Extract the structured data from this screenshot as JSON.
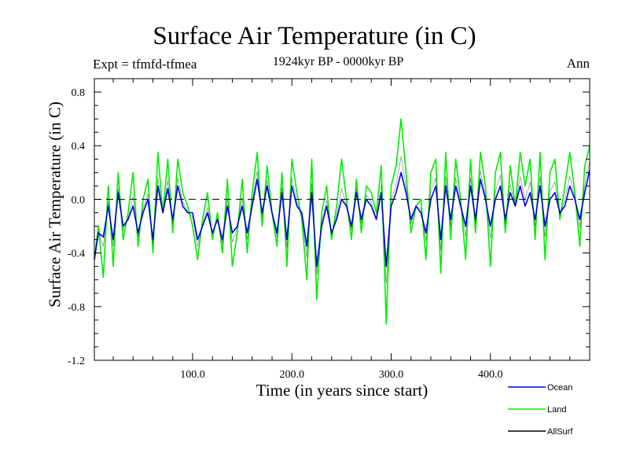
{
  "chart_data": {
    "type": "line",
    "title": "Surface Air Temperature (in C)",
    "subtitle_left": "Expt = tfmfd-tfmea",
    "subtitle_center": "1924kyr BP - 0000kyr BP",
    "subtitle_right": "Ann",
    "xlabel": "Time (in years since start)",
    "ylabel": "Surface Air Temperature (in C)",
    "xlim": [
      1,
      500
    ],
    "ylim": [
      -1.2,
      0.9
    ],
    "xticks": [
      100,
      200,
      300,
      400
    ],
    "xtick_labels": [
      "100.0",
      "200.0",
      "300.0",
      "400.0"
    ],
    "yticks": [
      0.8,
      0.4,
      0.0,
      -0.4,
      -0.8,
      -1.2
    ],
    "ytick_labels": [
      "0.8",
      "0.4",
      "0.0",
      "-0.4",
      "-0.8",
      "-1.2"
    ],
    "zero_line": 0.0,
    "series": [
      {
        "name": "Land",
        "color": "#00ee00",
        "x": [
          1,
          5,
          10,
          15,
          20,
          25,
          30,
          35,
          40,
          45,
          50,
          55,
          60,
          65,
          70,
          75,
          80,
          85,
          90,
          95,
          100,
          105,
          110,
          115,
          120,
          125,
          130,
          135,
          140,
          145,
          150,
          155,
          160,
          165,
          170,
          175,
          180,
          185,
          190,
          195,
          200,
          205,
          210,
          215,
          220,
          225,
          230,
          235,
          240,
          245,
          250,
          255,
          260,
          265,
          270,
          275,
          280,
          285,
          290,
          295,
          300,
          305,
          310,
          315,
          320,
          325,
          330,
          335,
          340,
          345,
          350,
          355,
          360,
          365,
          370,
          375,
          380,
          385,
          390,
          395,
          400,
          405,
          410,
          415,
          420,
          425,
          430,
          435,
          440,
          445,
          450,
          455,
          460,
          465,
          470,
          475,
          480,
          485,
          490,
          495,
          500
        ],
        "values": [
          -0.45,
          -0.2,
          -0.58,
          0.1,
          -0.5,
          0.2,
          -0.3,
          -0.1,
          0.2,
          -0.35,
          0.0,
          0.15,
          -0.4,
          0.35,
          -0.1,
          0.3,
          -0.25,
          0.3,
          0.05,
          -0.05,
          -0.2,
          -0.45,
          -0.15,
          0.05,
          -0.3,
          -0.1,
          -0.4,
          0.15,
          -0.5,
          -0.25,
          0.15,
          -0.4,
          0.05,
          0.35,
          -0.2,
          0.25,
          -0.1,
          -0.35,
          0.2,
          -0.5,
          0.3,
          0.05,
          -0.15,
          -0.6,
          0.3,
          -0.75,
          -0.1,
          0.1,
          -0.3,
          -0.05,
          0.3,
          0.0,
          -0.3,
          0.15,
          -0.25,
          0.1,
          0.05,
          -0.1,
          0.25,
          -0.93,
          0.1,
          0.25,
          0.6,
          0.2,
          -0.25,
          -0.05,
          0.0,
          -0.45,
          0.2,
          0.3,
          -0.55,
          0.35,
          -0.3,
          0.3,
          0.0,
          -0.45,
          0.3,
          -0.25,
          0.35,
          0.1,
          -0.5,
          0.2,
          0.35,
          -0.25,
          0.25,
          -0.05,
          0.35,
          0.1,
          0.3,
          -0.3,
          0.35,
          -0.45,
          0.2,
          0.3,
          -0.15,
          0.1,
          0.35,
          0.05,
          -0.35,
          0.25,
          0.4
        ]
      },
      {
        "name": "Ocean",
        "color": "#0000ff",
        "x": [
          1,
          5,
          10,
          15,
          20,
          25,
          30,
          35,
          40,
          45,
          50,
          55,
          60,
          65,
          70,
          75,
          80,
          85,
          90,
          95,
          100,
          105,
          110,
          115,
          120,
          125,
          130,
          135,
          140,
          145,
          150,
          155,
          160,
          165,
          170,
          175,
          180,
          185,
          190,
          195,
          200,
          205,
          210,
          215,
          220,
          225,
          230,
          235,
          240,
          245,
          250,
          255,
          260,
          265,
          270,
          275,
          280,
          285,
          290,
          295,
          300,
          305,
          310,
          315,
          320,
          325,
          330,
          335,
          340,
          345,
          350,
          355,
          360,
          365,
          370,
          375,
          380,
          385,
          390,
          395,
          400,
          405,
          410,
          415,
          420,
          425,
          430,
          435,
          440,
          445,
          450,
          455,
          460,
          465,
          470,
          475,
          480,
          485,
          490,
          495,
          500
        ],
        "values": [
          -0.45,
          -0.25,
          -0.28,
          -0.05,
          -0.3,
          0.05,
          -0.2,
          -0.15,
          -0.05,
          -0.25,
          -0.1,
          0.0,
          -0.3,
          0.1,
          -0.1,
          0.08,
          -0.15,
          0.1,
          -0.05,
          -0.1,
          -0.1,
          -0.3,
          -0.2,
          -0.1,
          -0.25,
          -0.15,
          -0.3,
          -0.05,
          -0.25,
          -0.2,
          -0.05,
          -0.25,
          -0.05,
          0.15,
          -0.1,
          0.1,
          -0.1,
          -0.25,
          0.05,
          -0.3,
          0.1,
          -0.05,
          -0.1,
          -0.35,
          0.05,
          -0.5,
          -0.2,
          -0.05,
          -0.25,
          -0.15,
          0.0,
          -0.05,
          -0.2,
          0.05,
          -0.15,
          0.0,
          -0.05,
          -0.15,
          0.05,
          -0.5,
          -0.05,
          0.05,
          0.2,
          0.05,
          -0.15,
          -0.05,
          -0.1,
          -0.25,
          0.0,
          0.1,
          -0.3,
          0.1,
          -0.15,
          0.1,
          -0.05,
          -0.2,
          0.1,
          -0.15,
          0.15,
          0.0,
          -0.2,
          0.0,
          0.1,
          -0.15,
          0.05,
          -0.05,
          0.1,
          -0.05,
          0.05,
          -0.15,
          0.1,
          -0.2,
          0.0,
          0.05,
          -0.1,
          -0.05,
          0.1,
          0.0,
          -0.15,
          0.05,
          0.22
        ]
      },
      {
        "name": "AllSurf",
        "color": "#000000",
        "x": [
          1,
          5,
          10,
          15,
          20,
          25,
          30,
          35,
          40,
          45,
          50,
          55,
          60,
          65,
          70,
          75,
          80,
          85,
          90,
          95,
          100,
          105,
          110,
          115,
          120,
          125,
          130,
          135,
          140,
          145,
          150,
          155,
          160,
          165,
          170,
          175,
          180,
          185,
          190,
          195,
          200,
          205,
          210,
          215,
          220,
          225,
          230,
          235,
          240,
          245,
          250,
          255,
          260,
          265,
          270,
          275,
          280,
          285,
          290,
          295,
          300,
          305,
          310,
          315,
          320,
          325,
          330,
          335,
          340,
          345,
          350,
          355,
          360,
          365,
          370,
          375,
          380,
          385,
          390,
          395,
          400,
          405,
          410,
          415,
          420,
          425,
          430,
          435,
          440,
          445,
          450,
          455,
          460,
          465,
          470,
          475,
          480,
          485,
          490,
          495,
          500
        ],
        "values": [
          -0.45,
          -0.24,
          -0.35,
          -0.02,
          -0.35,
          0.08,
          -0.23,
          -0.14,
          0.02,
          -0.28,
          -0.07,
          0.04,
          -0.33,
          0.16,
          -0.1,
          0.14,
          -0.18,
          0.16,
          -0.02,
          -0.09,
          -0.13,
          -0.35,
          -0.19,
          -0.06,
          -0.26,
          -0.14,
          -0.33,
          0.01,
          -0.32,
          -0.21,
          0.01,
          -0.3,
          -0.02,
          0.21,
          -0.13,
          0.14,
          -0.1,
          -0.28,
          0.09,
          -0.36,
          0.16,
          -0.02,
          -0.12,
          -0.43,
          0.12,
          -0.56,
          -0.17,
          -0.01,
          -0.27,
          -0.12,
          0.08,
          -0.04,
          -0.23,
          0.08,
          -0.18,
          0.03,
          -0.02,
          -0.14,
          0.11,
          -0.63,
          -0.01,
          0.11,
          0.32,
          0.09,
          -0.18,
          -0.05,
          -0.07,
          -0.31,
          0.06,
          0.16,
          -0.38,
          0.17,
          -0.2,
          0.16,
          -0.04,
          -0.28,
          0.16,
          -0.18,
          0.21,
          0.03,
          -0.29,
          0.06,
          0.18,
          -0.18,
          0.11,
          -0.05,
          0.17,
          0.0,
          0.13,
          -0.2,
          0.17,
          -0.28,
          0.06,
          0.13,
          -0.12,
          0.0,
          0.17,
          0.02,
          -0.21,
          0.11,
          0.28
        ]
      }
    ],
    "legend": [
      "Ocean",
      "Land",
      "AllSurf"
    ],
    "legend_position": "bottom-right"
  }
}
